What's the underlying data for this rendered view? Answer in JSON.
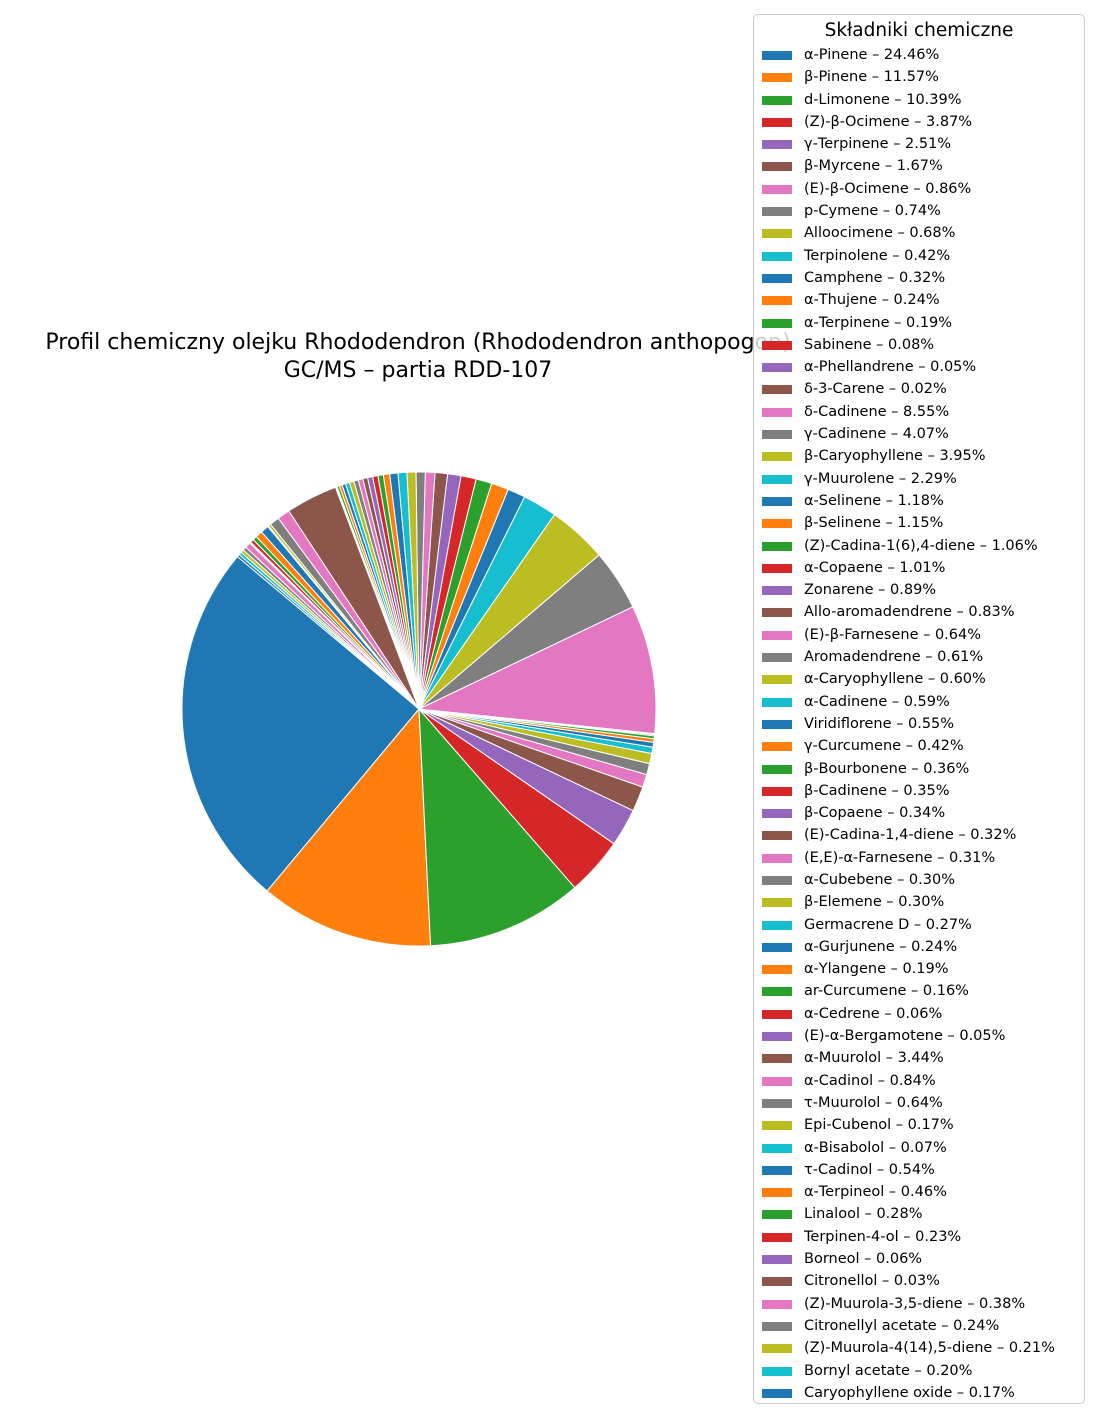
{
  "chart_data": {
    "type": "pie",
    "title_line1": "Profil chemiczny olejku Rhododendron (Rhododendron anthopogon)",
    "title_line2": "GC/MS – partia RDD-107",
    "legend_title": "Składniki chemiczne",
    "legend_placement": "right",
    "start_angle_deg": 140,
    "direction": "counterclockwise",
    "colors": [
      "#1f77b4",
      "#ff7f0e",
      "#2ca02c",
      "#d62728",
      "#9467bd",
      "#8c564b",
      "#e377c2",
      "#7f7f7f",
      "#bcbd22",
      "#17becf"
    ],
    "slices": [
      {
        "label": "α-Pinene – 24.46%",
        "value": 24.46
      },
      {
        "label": "β-Pinene – 11.57%",
        "value": 11.57
      },
      {
        "label": "d-Limonene – 10.39%",
        "value": 10.39
      },
      {
        "label": "(Z)-β-Ocimene – 3.87%",
        "value": 3.87
      },
      {
        "label": "γ-Terpinene – 2.51%",
        "value": 2.51
      },
      {
        "label": "β-Myrcene – 1.67%",
        "value": 1.67
      },
      {
        "label": "(E)-β-Ocimene – 0.86%",
        "value": 0.86
      },
      {
        "label": "p-Cymene – 0.74%",
        "value": 0.74
      },
      {
        "label": "Alloocimene – 0.68%",
        "value": 0.68
      },
      {
        "label": "Terpinolene – 0.42%",
        "value": 0.42
      },
      {
        "label": "Camphene – 0.32%",
        "value": 0.32
      },
      {
        "label": "α-Thujene – 0.24%",
        "value": 0.24
      },
      {
        "label": "α-Terpinene – 0.19%",
        "value": 0.19
      },
      {
        "label": "Sabinene – 0.08%",
        "value": 0.08
      },
      {
        "label": "α-Phellandrene – 0.05%",
        "value": 0.05
      },
      {
        "label": "δ-3-Carene – 0.02%",
        "value": 0.02
      },
      {
        "label": "δ-Cadinene – 8.55%",
        "value": 8.55
      },
      {
        "label": "γ-Cadinene – 4.07%",
        "value": 4.07
      },
      {
        "label": "β-Caryophyllene – 3.95%",
        "value": 3.95
      },
      {
        "label": "γ-Muurolene – 2.29%",
        "value": 2.29
      },
      {
        "label": "α-Selinene – 1.18%",
        "value": 1.18
      },
      {
        "label": "β-Selinene – 1.15%",
        "value": 1.15
      },
      {
        "label": "(Z)-Cadina-1(6),4-diene – 1.06%",
        "value": 1.06
      },
      {
        "label": "α-Copaene – 1.01%",
        "value": 1.01
      },
      {
        "label": "Zonarene – 0.89%",
        "value": 0.89
      },
      {
        "label": "Allo-aromadendrene – 0.83%",
        "value": 0.83
      },
      {
        "label": "(E)-β-Farnesene – 0.64%",
        "value": 0.64
      },
      {
        "label": "Aromadendrene – 0.61%",
        "value": 0.61
      },
      {
        "label": "α-Caryophyllene – 0.60%",
        "value": 0.6
      },
      {
        "label": "α-Cadinene – 0.59%",
        "value": 0.59
      },
      {
        "label": "Viridiflorene – 0.55%",
        "value": 0.55
      },
      {
        "label": "γ-Curcumene – 0.42%",
        "value": 0.42
      },
      {
        "label": "β-Bourbonene – 0.36%",
        "value": 0.36
      },
      {
        "label": "β-Cadinene – 0.35%",
        "value": 0.35
      },
      {
        "label": "β-Copaene – 0.34%",
        "value": 0.34
      },
      {
        "label": "(E)-Cadina-1,4-diene – 0.32%",
        "value": 0.32
      },
      {
        "label": "(E,E)-α-Farnesene – 0.31%",
        "value": 0.31
      },
      {
        "label": "α-Cubebene – 0.30%",
        "value": 0.3
      },
      {
        "label": "β-Elemene – 0.30%",
        "value": 0.3
      },
      {
        "label": "Germacrene D – 0.27%",
        "value": 0.27
      },
      {
        "label": "α-Gurjunene – 0.24%",
        "value": 0.24
      },
      {
        "label": "α-Ylangene – 0.19%",
        "value": 0.19
      },
      {
        "label": "ar-Curcumene – 0.16%",
        "value": 0.16
      },
      {
        "label": "α-Cedrene – 0.06%",
        "value": 0.06
      },
      {
        "label": "(E)-α-Bergamotene – 0.05%",
        "value": 0.05
      },
      {
        "label": "α-Muurolol – 3.44%",
        "value": 3.44
      },
      {
        "label": "α-Cadinol – 0.84%",
        "value": 0.84
      },
      {
        "label": "τ-Muurolol – 0.64%",
        "value": 0.64
      },
      {
        "label": "Epi-Cubenol – 0.17%",
        "value": 0.17
      },
      {
        "label": "α-Bisabolol – 0.07%",
        "value": 0.07
      },
      {
        "label": "τ-Cadinol – 0.54%",
        "value": 0.54
      },
      {
        "label": "α-Terpineol – 0.46%",
        "value": 0.46
      },
      {
        "label": "Linalool – 0.28%",
        "value": 0.28
      },
      {
        "label": "Terpinen-4-ol – 0.23%",
        "value": 0.23
      },
      {
        "label": "Borneol – 0.06%",
        "value": 0.06
      },
      {
        "label": "Citronellol – 0.03%",
        "value": 0.03
      },
      {
        "label": "(Z)-Muurola-3,5-diene – 0.38%",
        "value": 0.38
      },
      {
        "label": "Citronellyl acetate – 0.24%",
        "value": 0.24
      },
      {
        "label": "(Z)-Muurola-4(14),5-diene – 0.21%",
        "value": 0.21
      },
      {
        "label": "Bornyl acetate – 0.20%",
        "value": 0.2
      },
      {
        "label": "Caryophyllene oxide – 0.17%",
        "value": 0.17
      }
    ]
  }
}
